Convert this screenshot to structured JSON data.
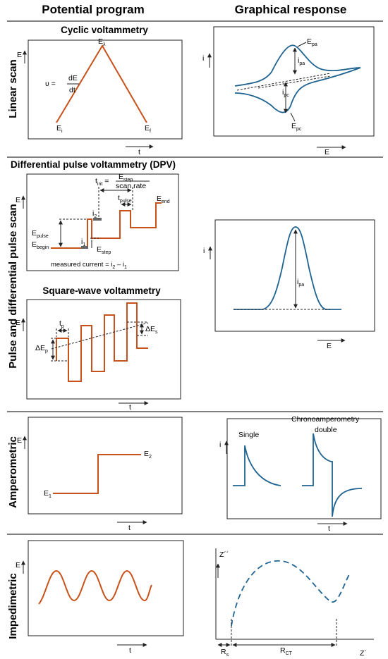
{
  "headers": {
    "left": "Potential program",
    "right": "Graphical response"
  },
  "rows": {
    "linear": "Linear scan",
    "pulse": "Pulse and differential pulse scan",
    "amperometric": "Amperometric",
    "impedimetric": "Impedimetric"
  },
  "cv": {
    "title": "Cyclic voltammetry",
    "axis_e": "E",
    "axis_t": "t",
    "ei": "E",
    "ei_sub": "i",
    "ef": "E",
    "ef_sub": "f",
    "elambda": "E",
    "elambda_sub": "λ",
    "nu": "υ =",
    "nu_num": "dE",
    "nu_den": "dt",
    "resp_i": "i",
    "resp_e": "E",
    "epa": "E",
    "epa_sub": "pa",
    "ipa": "i",
    "ipa_sub": "pa",
    "ipc": "i",
    "ipc_sub": "pc",
    "epc": "E",
    "epc_sub": "pc"
  },
  "dpv": {
    "title": "Differential pulse voltammetry (DPV)",
    "axis_e": "E",
    "tint": "t",
    "tint_sub": "int",
    "estep_num": "E",
    "estep_num_sub": "step",
    "scan_rate": "scan rate",
    "tpulse": "t",
    "tpulse_sub": "pulse",
    "eend": "E",
    "eend_sub": "end",
    "epulse": "E",
    "epulse_sub": "pulse",
    "ebegin": "E",
    "ebegin_sub": "begin",
    "i1": "i",
    "i1_sub": "1",
    "i2": "i",
    "i2_sub": "2",
    "estep": "E",
    "estep_sub": "step",
    "measured": "measured current = i",
    "measured_sub2": "2",
    "measured_mid": " – i",
    "measured_sub1": "1",
    "resp_i": "i",
    "resp_e": "E",
    "ipa": "i",
    "ipa_sub": "pa"
  },
  "swv": {
    "title": "Square-wave voltammetry",
    "axis_e": "E",
    "axis_t": "t",
    "tp": "t",
    "tp_sub": "p",
    "dep": "ΔE",
    "dep_sub": "p",
    "des": "ΔE",
    "des_sub": "s"
  },
  "amp": {
    "axis_e": "E",
    "axis_t": "t",
    "e1": "E",
    "e1_sub": "1",
    "e2": "E",
    "e2_sub": "2",
    "resp_i": "i",
    "resp_t": "t",
    "single": "Single",
    "chrono": "Chronoamperometry",
    "double": "double"
  },
  "imp": {
    "axis_e": "E",
    "axis_t": "t",
    "zimag": "Z´´",
    "zreal": "Z´",
    "rs": "R",
    "rs_sub": "s",
    "rct": "R",
    "rct_sub": "CT"
  }
}
